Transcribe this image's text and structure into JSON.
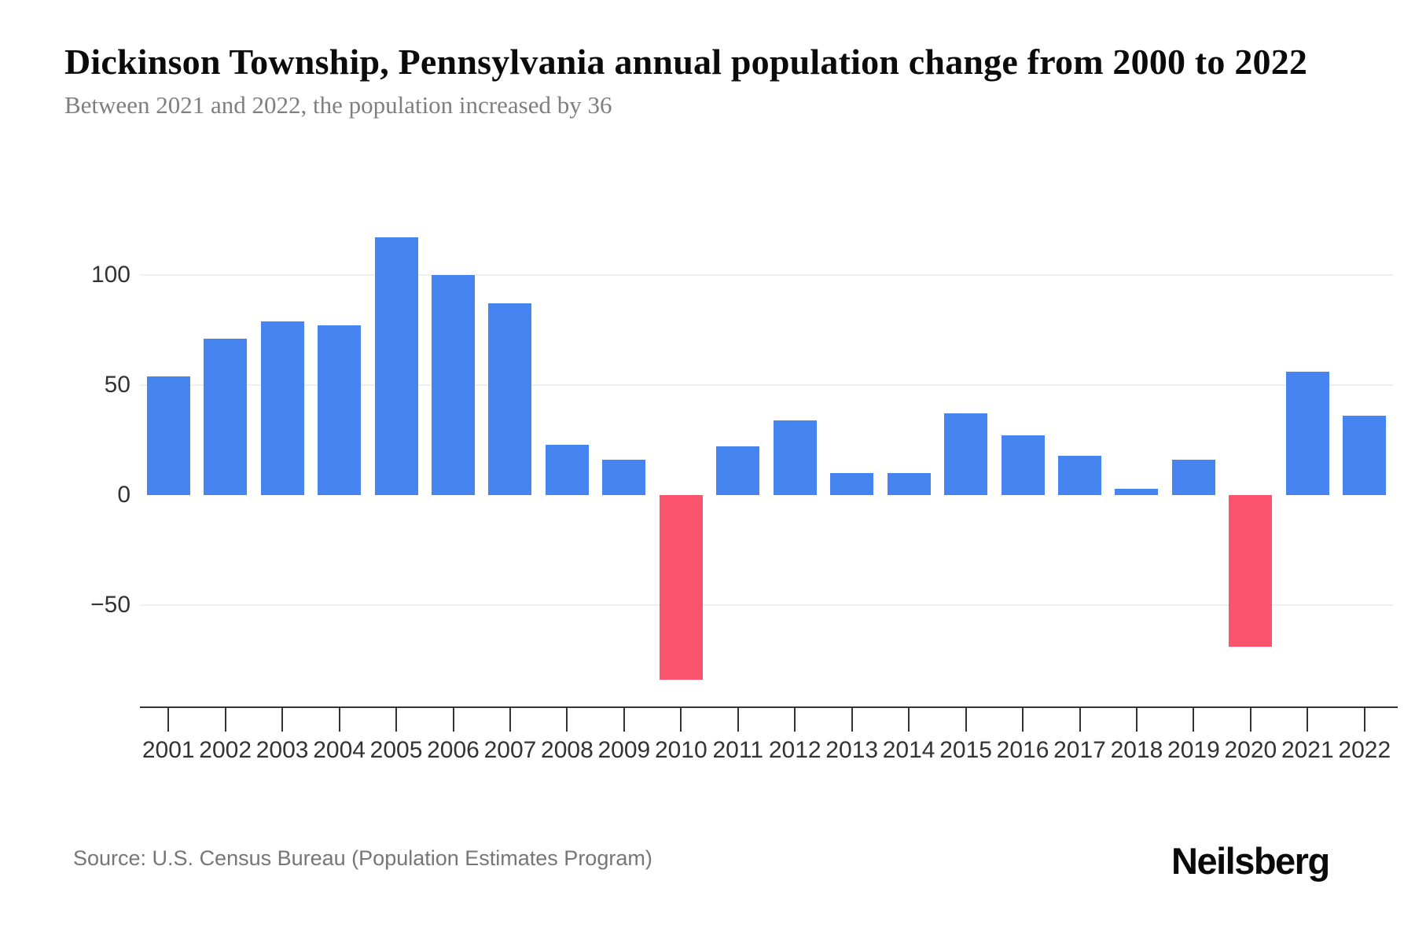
{
  "header": {
    "title": "Dickinson Township, Pennsylvania annual population change from 2000 to 2022",
    "subtitle": "Between 2021 and 2022, the population increased by 36"
  },
  "footer": {
    "source": "Source: U.S. Census Bureau (Population Estimates Program)",
    "brand": "Neilsberg"
  },
  "chart_data": {
    "type": "bar",
    "title": "Dickinson Township, Pennsylvania annual population change from 2000 to 2022",
    "subtitle": "Between 2021 and 2022, the population increased by 36",
    "categories": [
      "2001",
      "2002",
      "2003",
      "2004",
      "2005",
      "2006",
      "2007",
      "2008",
      "2009",
      "2010",
      "2011",
      "2012",
      "2013",
      "2014",
      "2015",
      "2016",
      "2017",
      "2018",
      "2019",
      "2020",
      "2021",
      "2022"
    ],
    "values": [
      54,
      71,
      79,
      77,
      117,
      100,
      87,
      23,
      16,
      -84,
      22,
      34,
      10,
      10,
      37,
      27,
      18,
      3,
      16,
      -69,
      56,
      36
    ],
    "xlabel": "",
    "ylabel": "",
    "ylim": [
      -97,
      125
    ],
    "yticks": [
      {
        "label": "100",
        "value": 100
      },
      {
        "label": "50",
        "value": 50
      },
      {
        "label": "0",
        "value": 0
      },
      {
        "label": "−50",
        "value": -50
      }
    ],
    "grid": "horizontal-light",
    "legend": "none",
    "colors": {
      "positive": "#4685F0",
      "negative": "#F9536E",
      "gridline": "#EFEFEF",
      "axis": "#333333"
    }
  }
}
